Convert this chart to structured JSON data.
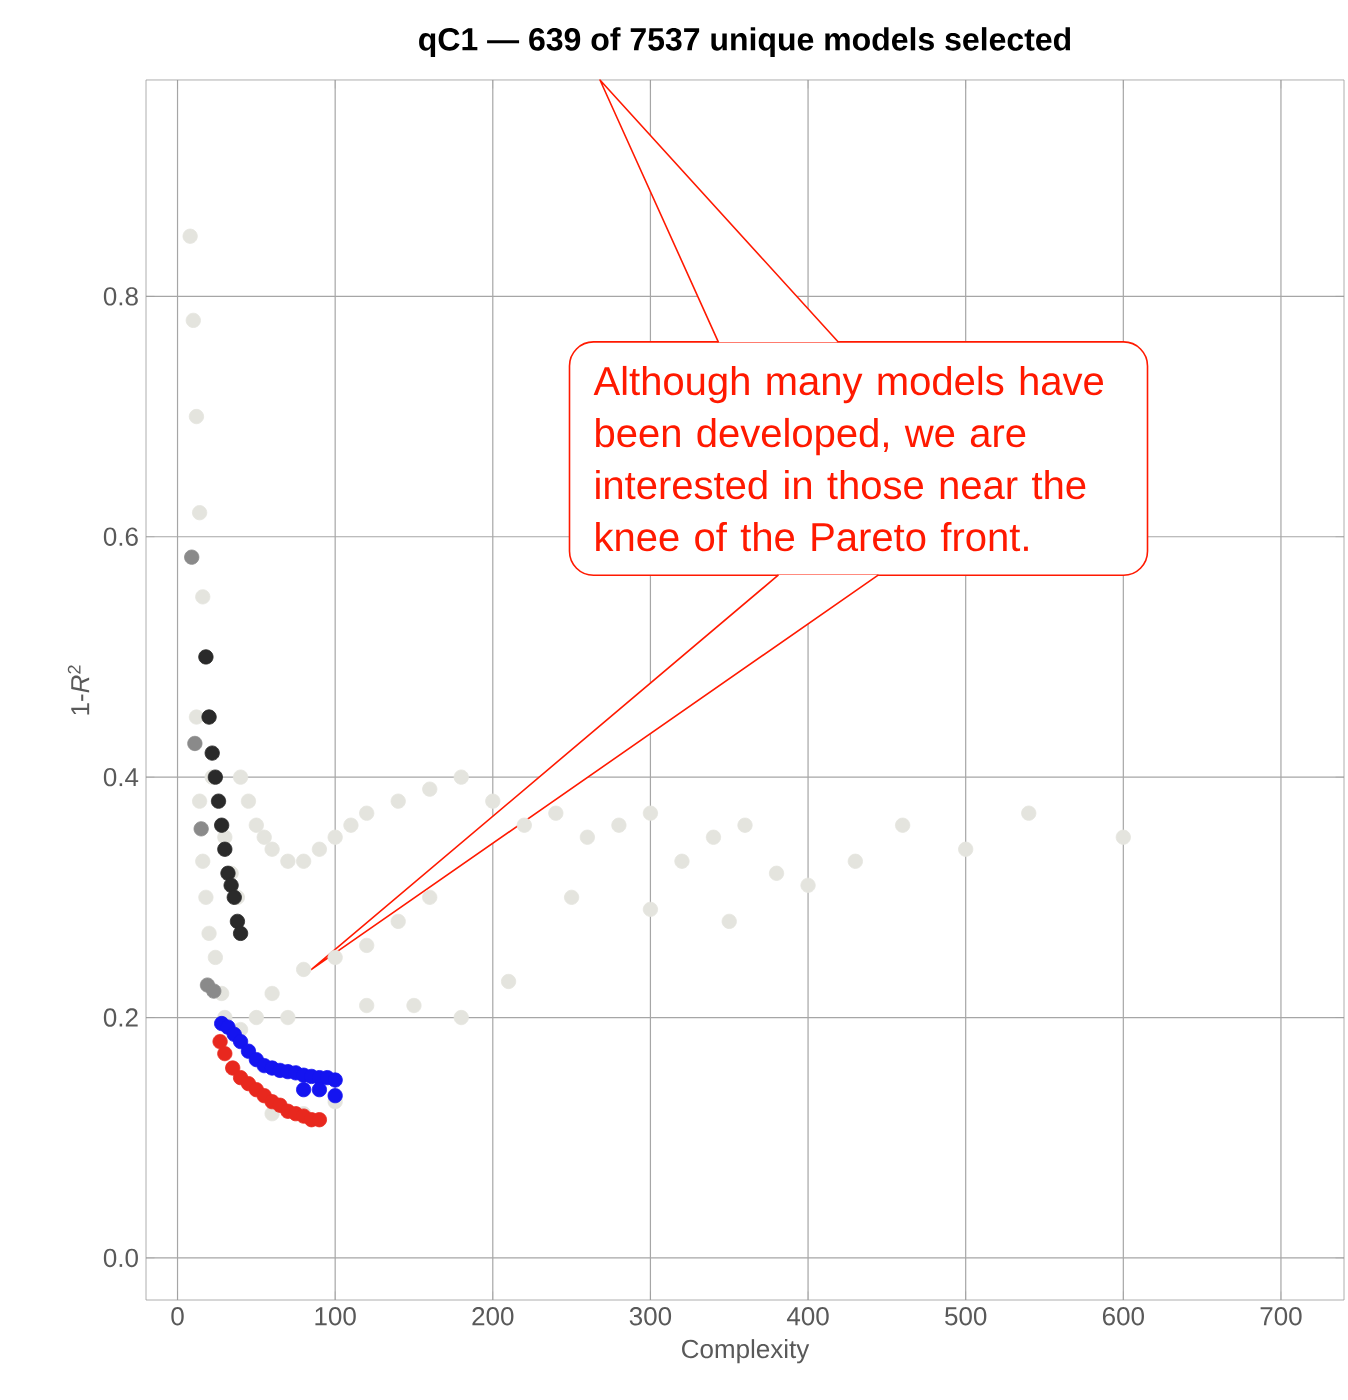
{
  "chart_data": {
    "type": "scatter",
    "title": "qC1 — 639 of 7537 unique models selected",
    "xlabel": "Complexity",
    "ylabel": "1-*R*$^{2}$",
    "xlim": [
      -20,
      740
    ],
    "ylim": [
      -0.035,
      0.98
    ],
    "xticks": [
      0,
      100,
      200,
      300,
      400,
      500,
      600,
      700
    ],
    "yticks": [
      {
        "value": 0,
        "label": "0.0"
      },
      {
        "value": 0.2,
        "label": "0.2"
      },
      {
        "value": 0.4,
        "label": "0.4"
      },
      {
        "value": 0.6,
        "label": "0.6"
      },
      {
        "value": 0.8,
        "label": "0.8"
      }
    ],
    "grid": true,
    "marker": "circle",
    "series": [
      {
        "color": "#e4e4de",
        "x": [
          8,
          10,
          12,
          14,
          16,
          18,
          20,
          22,
          12,
          14,
          16,
          18,
          20,
          24,
          28,
          30,
          34,
          38,
          40,
          45,
          50,
          55,
          60,
          70,
          80,
          90,
          100,
          110,
          120,
          140,
          160,
          180,
          200,
          220,
          240,
          260,
          280,
          300,
          320,
          340,
          360,
          380,
          400,
          430,
          460,
          500,
          540,
          600,
          30,
          40,
          50,
          60,
          70,
          80,
          100,
          120,
          140,
          160,
          250,
          300,
          350,
          120,
          150,
          180,
          210,
          60,
          80,
          100
        ],
        "values": [
          0.85,
          0.78,
          0.7,
          0.62,
          0.55,
          0.5,
          0.45,
          0.4,
          0.45,
          0.38,
          0.33,
          0.3,
          0.27,
          0.25,
          0.22,
          0.35,
          0.32,
          0.3,
          0.4,
          0.38,
          0.36,
          0.35,
          0.34,
          0.33,
          0.33,
          0.34,
          0.35,
          0.36,
          0.37,
          0.38,
          0.39,
          0.4,
          0.38,
          0.36,
          0.37,
          0.35,
          0.36,
          0.37,
          0.33,
          0.35,
          0.36,
          0.32,
          0.31,
          0.33,
          0.36,
          0.34,
          0.37,
          0.35,
          0.2,
          0.19,
          0.2,
          0.22,
          0.2,
          0.24,
          0.25,
          0.26,
          0.28,
          0.3,
          0.3,
          0.29,
          0.28,
          0.21,
          0.21,
          0.2,
          0.23,
          0.12,
          0.12,
          0.13
        ]
      },
      {
        "color": "#2a2a2a",
        "x": [
          18,
          20,
          22,
          24,
          26,
          28,
          30,
          32,
          34,
          36,
          38,
          40
        ],
        "values": [
          0.5,
          0.45,
          0.42,
          0.4,
          0.38,
          0.36,
          0.34,
          0.32,
          0.31,
          0.3,
          0.28,
          0.27
        ]
      },
      {
        "color": "#8a8a8a",
        "x": [
          9,
          11,
          15,
          19,
          23
        ],
        "values": [
          0.583,
          0.428,
          0.357,
          0.227,
          0.222
        ]
      },
      {
        "color": "#1414f0",
        "x": [
          28,
          32,
          36,
          40,
          45,
          50,
          55,
          60,
          65,
          70,
          75,
          80,
          85,
          90,
          95,
          100,
          100,
          90,
          80
        ],
        "values": [
          0.195,
          0.192,
          0.186,
          0.18,
          0.172,
          0.165,
          0.16,
          0.158,
          0.156,
          0.155,
          0.154,
          0.152,
          0.151,
          0.15,
          0.15,
          0.148,
          0.135,
          0.14,
          0.14
        ]
      },
      {
        "color": "#e8281e",
        "x": [
          27,
          30,
          35,
          40,
          45,
          50,
          55,
          60,
          65,
          70,
          75,
          80,
          85,
          90
        ],
        "values": [
          0.18,
          0.17,
          0.158,
          0.15,
          0.145,
          0.14,
          0.135,
          0.13,
          0.127,
          0.122,
          0.12,
          0.118,
          0.115,
          0.115
        ]
      }
    ],
    "annotations": [
      "Although many models have been developed, we are interested in those near the knee of the Pareto front."
    ]
  }
}
